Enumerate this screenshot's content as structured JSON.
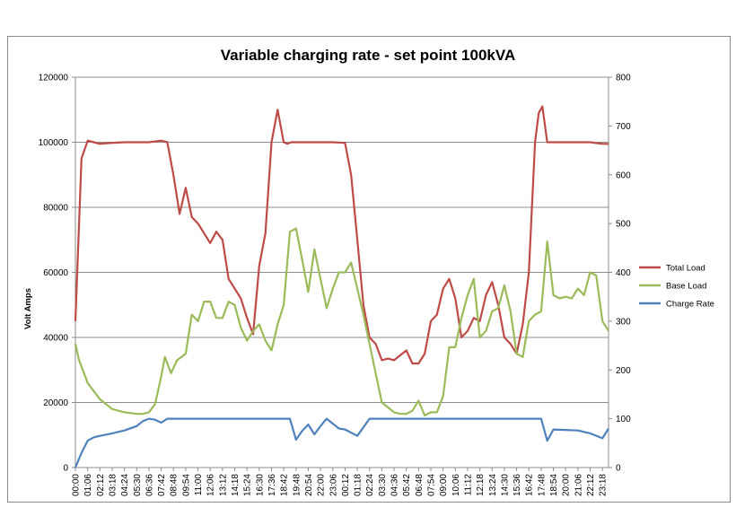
{
  "chart_data": {
    "type": "line",
    "title": "Variable charging rate - set point 100kVA",
    "ylabel": "Volt Amps",
    "ylabel_right": "",
    "xlabel": "",
    "ylim": [
      0,
      120000
    ],
    "y2lim": [
      0,
      800
    ],
    "y_ticks": [
      "0",
      "20000",
      "40000",
      "60000",
      "80000",
      "100000",
      "120000"
    ],
    "y2_ticks": [
      "0",
      "100",
      "200",
      "300",
      "400",
      "500",
      "600",
      "700",
      "800"
    ],
    "grid": true,
    "legend_position": "right",
    "x_ticks": [
      "00:00",
      "01:06",
      "02:12",
      "03:18",
      "04:24",
      "05:30",
      "06:36",
      "07:42",
      "08:48",
      "09:54",
      "11:00",
      "12:06",
      "13:12",
      "14:18",
      "15:24",
      "16:30",
      "17:36",
      "18:42",
      "19:48",
      "20:54",
      "22:00",
      "23:06",
      "00:12",
      "01:18",
      "02:24",
      "03:30",
      "04:36",
      "05:42",
      "06:48",
      "07:54",
      "09:00",
      "10:06",
      "11:12",
      "12:18",
      "13:24",
      "14:30",
      "15:36",
      "16:42",
      "17:48",
      "18:54",
      "20:00",
      "21:06",
      "22:12",
      "23:18"
    ],
    "x_range": [
      0,
      43.5
    ],
    "series": [
      {
        "name": "Total Load",
        "axis": "left",
        "color": "#be4b48",
        "x": [
          0,
          0.5,
          1,
          1.5,
          2,
          3,
          4,
          5,
          6,
          7,
          7.5,
          8,
          8.5,
          9,
          9.5,
          10,
          10.5,
          11,
          11.5,
          12,
          12.5,
          13,
          13.5,
          14,
          14.5,
          15,
          15.5,
          16,
          16.5,
          17,
          17.3,
          17.6,
          18,
          19,
          20,
          21,
          22,
          22.5,
          23,
          23.5,
          24,
          24.5,
          25,
          25.5,
          26,
          27,
          27.5,
          28,
          28.5,
          29,
          29.5,
          30,
          30.5,
          31,
          31.5,
          32,
          32.5,
          33,
          33.5,
          34,
          34.5,
          35,
          35.5,
          36,
          36.5,
          37,
          37.5,
          37.8,
          38.1,
          38.5,
          39,
          40,
          41,
          42,
          43,
          43.5
        ],
        "values": [
          45000,
          95000,
          100500,
          100000,
          99500,
          99800,
          100000,
          100000,
          100000,
          100500,
          100000,
          90000,
          78000,
          86000,
          77000,
          75000,
          72000,
          69000,
          72500,
          70000,
          58000,
          55000,
          52000,
          46000,
          41000,
          62000,
          72000,
          100000,
          110000,
          100000,
          99500,
          100000,
          100000,
          100000,
          100000,
          100000,
          99800,
          90000,
          70000,
          50000,
          40000,
          38000,
          33000,
          33500,
          33000,
          36000,
          32000,
          32000,
          35000,
          45000,
          47000,
          55000,
          58000,
          52000,
          40000,
          42000,
          46000,
          45000,
          53000,
          57000,
          50000,
          40000,
          38000,
          35000,
          44000,
          60000,
          100000,
          109000,
          111000,
          100000,
          100000,
          100000,
          100000,
          100000,
          99500,
          99500
        ]
      },
      {
        "name": "Base Load",
        "axis": "left",
        "color": "#9bbb59",
        "x": [
          0,
          0.3,
          1,
          2,
          3,
          4,
          5,
          5.5,
          6,
          6.5,
          7,
          7.3,
          7.8,
          8.3,
          9,
          9.5,
          10,
          10.5,
          11,
          11.5,
          12,
          12.5,
          13,
          13.5,
          14,
          14.5,
          15,
          15.5,
          16,
          16.5,
          17,
          17.5,
          18,
          18.5,
          19,
          19.5,
          20,
          20.5,
          21,
          21.5,
          22,
          22.5,
          23,
          23.5,
          24,
          25,
          26,
          26.5,
          27,
          27.5,
          28,
          28.5,
          29,
          29.5,
          30,
          30.5,
          31,
          31.5,
          32,
          32.5,
          33,
          33.5,
          34,
          34.5,
          35,
          35.5,
          36,
          36.5,
          37,
          37.5,
          38,
          38.5,
          39,
          39.5,
          40,
          40.5,
          41,
          41.5,
          42,
          42.5,
          43,
          43.5
        ],
        "values": [
          38000,
          33000,
          26000,
          21000,
          18000,
          17000,
          16500,
          16500,
          17000,
          19500,
          28000,
          34000,
          29000,
          33000,
          35000,
          47000,
          45000,
          51000,
          51000,
          46000,
          46000,
          51000,
          50000,
          43000,
          39000,
          42000,
          44000,
          39000,
          36000,
          44000,
          50000,
          72500,
          73500,
          64000,
          54000,
          67000,
          58000,
          49000,
          55000,
          60000,
          60000,
          63000,
          55000,
          47000,
          38000,
          20000,
          17000,
          16500,
          16500,
          17500,
          20500,
          16000,
          17000,
          17000,
          22000,
          37000,
          37000,
          46000,
          53000,
          58000,
          40000,
          42000,
          48000,
          49000,
          56000,
          48000,
          35000,
          34000,
          45000,
          47000,
          48000,
          69500,
          53000,
          52000,
          52500,
          52000,
          55000,
          53000,
          60000,
          59000,
          45000,
          42000
        ]
      },
      {
        "name": "Charge Rate",
        "axis": "right",
        "color": "#4f81bd",
        "x": [
          0,
          0.5,
          1,
          1.5,
          2,
          3,
          4,
          5,
          5.5,
          6,
          6.5,
          7,
          7.5,
          8,
          9,
          10,
          11,
          12,
          13,
          14,
          15,
          16,
          16.5,
          17,
          17.5,
          18,
          18.5,
          19,
          19.5,
          20,
          20.5,
          21,
          21.5,
          22,
          23,
          24,
          25,
          26,
          27,
          28,
          29,
          30,
          31,
          32,
          33,
          34,
          35,
          36,
          37,
          37.5,
          38,
          38.5,
          39,
          40,
          41,
          42,
          43,
          43.5
        ],
        "values": [
          0,
          30,
          55,
          62,
          65,
          70,
          76,
          85,
          95,
          100,
          98,
          92,
          100,
          100,
          100,
          100,
          100,
          100,
          100,
          100,
          100,
          100,
          100,
          100,
          100,
          57,
          75,
          88,
          68,
          85,
          100,
          90,
          80,
          78,
          65,
          100,
          100,
          100,
          100,
          100,
          100,
          100,
          100,
          100,
          100,
          100,
          100,
          100,
          100,
          100,
          100,
          55,
          78,
          77,
          76,
          70,
          60,
          80
        ]
      }
    ]
  }
}
